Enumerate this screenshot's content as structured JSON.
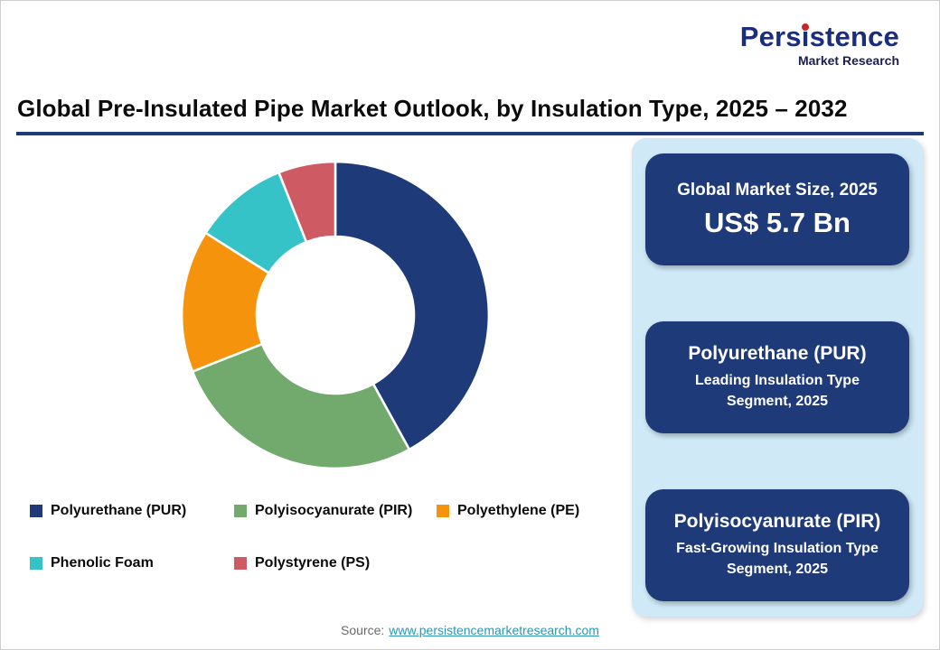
{
  "page": {
    "title": "Global Pre-Insulated Pipe Market Outlook, by Insulation Type, 2025 – 2032"
  },
  "logo": {
    "name_before_i": "Pers",
    "name_i": "i",
    "name_after_i": "stence",
    "subtitle": "Market Research",
    "brand_blue": "#1B2E7E",
    "accent_red": "#C9252B"
  },
  "theme": {
    "rule_color": "#1F3A78",
    "panel_bg": "#CFE9F7",
    "box_bg": "#1F3A78",
    "link_color": "#2A96B4",
    "source_text_color": "#6A6A6A"
  },
  "chart_data": {
    "type": "pie",
    "subtype": "donut",
    "title": "Global Pre-Insulated Pipe Market Outlook, by Insulation Type, 2025 – 2032",
    "unit": "%",
    "start_angle_deg": 0,
    "direction": "clockwise",
    "legend_position": "bottom-left",
    "slices": [
      {
        "label": "Polyurethane (PUR)",
        "value": 42,
        "color": "#1F3A78"
      },
      {
        "label": "Polyisocyanurate (PIR)",
        "value": 27,
        "color": "#72A96C"
      },
      {
        "label": "Polyethylene (PE)",
        "value": 15,
        "color": "#F5940C"
      },
      {
        "label": "Phenolic Foam",
        "value": 10,
        "color": "#35C3C8"
      },
      {
        "label": "Polystyrene (PS)",
        "value": 6,
        "color": "#CE5A64"
      }
    ]
  },
  "panel": {
    "boxes": [
      {
        "line1": "Global Market Size, 2025",
        "line2": "US$ 5.7 Bn"
      },
      {
        "line1": "Polyurethane (PUR)",
        "line2": "Leading Insulation Type Segment, 2025"
      },
      {
        "line1": "Polyisocyanurate (PIR)",
        "line2": "Fast-Growing Insulation Type Segment, 2025"
      }
    ]
  },
  "source": {
    "label": "Source:",
    "link": "www.persistencemarketresearch.com"
  }
}
